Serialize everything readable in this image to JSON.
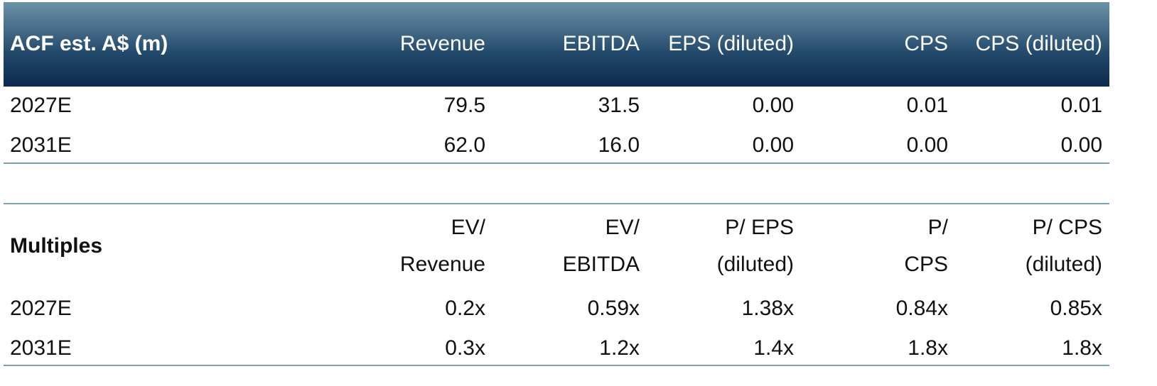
{
  "estimates": {
    "header": [
      "ACF est. A$ (m)",
      "Revenue",
      "EBITDA",
      "EPS (diluted)",
      "CPS",
      "CPS (diluted)"
    ],
    "rows": [
      [
        "2027E",
        "79.5",
        "31.5",
        "0.00",
        "0.01",
        "0.01"
      ],
      [
        "2031E",
        "62.0",
        "16.0",
        "0.00",
        "0.00",
        "0.00"
      ]
    ]
  },
  "multiples": {
    "title": "Multiples",
    "header": [
      [
        "EV/",
        "Revenue"
      ],
      [
        "EV/",
        "EBITDA"
      ],
      [
        "P/ EPS",
        "(diluted)"
      ],
      [
        "P/",
        "CPS"
      ],
      [
        "P/ CPS",
        "(diluted)"
      ]
    ],
    "rows": [
      [
        "2027E",
        "0.2x",
        "0.59x",
        "1.38x",
        "0.84x",
        "0.85x"
      ],
      [
        "2031E",
        "0.3x",
        "1.2x",
        "1.4x",
        "1.8x",
        "1.8x"
      ]
    ]
  }
}
